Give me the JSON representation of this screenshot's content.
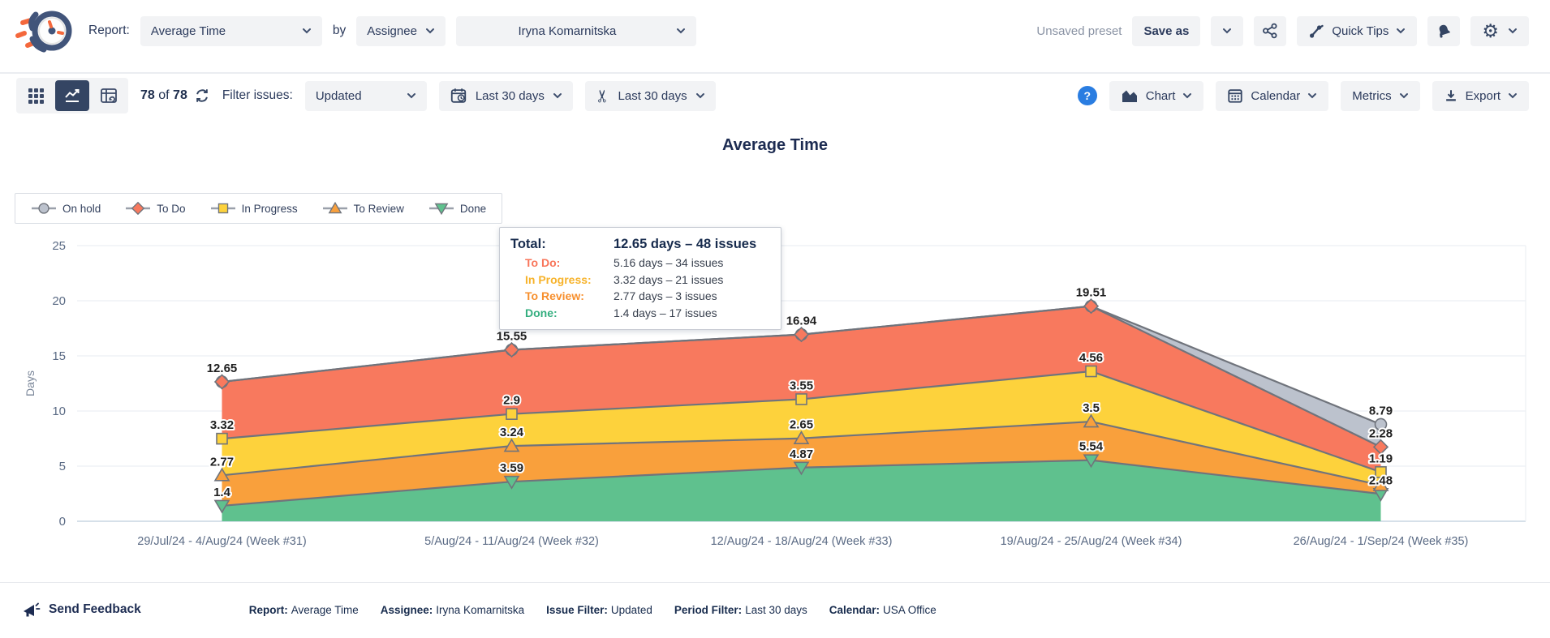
{
  "header": {
    "report_label": "Report:",
    "report_value": "Average Time",
    "by_label": "by",
    "group_value": "Assignee",
    "assignee_value": "Iryna Komarnitska",
    "unsaved_preset": "Unsaved preset",
    "save_as": "Save as",
    "quick_tips": "Quick Tips"
  },
  "icons": {
    "gear": "⚙",
    "scissors": "✂"
  },
  "toolbar": {
    "count_current": "78",
    "count_of": "of",
    "count_total": "78",
    "filter_label": "Filter issues:",
    "issue_filter": "Updated",
    "period_filter": "Last 30 days",
    "working_schedule_filter": "Last 30 days",
    "help": "?",
    "chart_btn": "Chart",
    "calendar_btn": "Calendar",
    "metrics_btn": "Metrics",
    "export_btn": "Export"
  },
  "legend": {
    "items": [
      {
        "label": "On hold",
        "marker": "circle",
        "color": "#bcc2cd"
      },
      {
        "label": "To Do",
        "marker": "diamond",
        "color": "#f8795e"
      },
      {
        "label": "In Progress",
        "marker": "square",
        "color": "#fdd23c"
      },
      {
        "label": "To Review",
        "marker": "triangle-up",
        "color": "#f9a03c"
      },
      {
        "label": "Done",
        "marker": "triangle-down",
        "color": "#5fc18e"
      }
    ]
  },
  "tooltip": {
    "title_label": "Total:",
    "title_value": "12.65 days – 48 issues",
    "rows": [
      {
        "label": "To Do:",
        "value": "5.16 days – 34 issues",
        "color": "#f8755a"
      },
      {
        "label": "In Progress:",
        "value": "3.32 days – 21 issues",
        "color": "#f7b32b"
      },
      {
        "label": "To Review:",
        "value": "2.77 days – 3 issues",
        "color": "#f78f2d"
      },
      {
        "label": "Done:",
        "value": "1.4 days – 17 issues",
        "color": "#34ae7f"
      }
    ]
  },
  "chart_data": {
    "type": "area",
    "stacked": true,
    "title": "Average Time",
    "ylabel": "Days",
    "ylim": [
      0,
      25
    ],
    "yticks": [
      0,
      5,
      10,
      15,
      20,
      25
    ],
    "grid": true,
    "legend_position": "top-left",
    "categories": [
      "29/Jul/24 - 4/Aug/24 (Week #31)",
      "5/Aug/24 - 11/Aug/24 (Week #32)",
      "12/Aug/24 - 18/Aug/24 (Week #33)",
      "19/Aug/24 - 25/Aug/24 (Week #34)",
      "26/Aug/24 - 1/Sep/24 (Week #35)"
    ],
    "series": [
      {
        "name": "Done",
        "color": "#5fc18e",
        "marker": "triangle-down",
        "values": [
          1.4,
          3.59,
          4.87,
          5.54,
          2.48
        ],
        "labels": [
          "1.4",
          "3.59",
          "4.87",
          "5.54",
          "2.48"
        ]
      },
      {
        "name": "To Review",
        "color": "#f9a03c",
        "marker": "triangle-up",
        "values": [
          2.77,
          3.24,
          2.65,
          3.5,
          0.79
        ],
        "labels": [
          "2.77",
          "3.24",
          "2.65",
          "3.5",
          ""
        ]
      },
      {
        "name": "In Progress",
        "color": "#fdd23c",
        "marker": "square",
        "values": [
          3.32,
          2.9,
          3.55,
          4.56,
          1.19
        ],
        "labels": [
          "3.32",
          "2.9",
          "3.55",
          "4.56",
          "1.19"
        ]
      },
      {
        "name": "To Do",
        "color": "#f8795e",
        "marker": "diamond",
        "values": [
          5.16,
          5.82,
          5.87,
          5.91,
          2.28
        ],
        "labels": [
          "12.65",
          "15.55",
          "16.94",
          "19.51",
          "2.28"
        ]
      },
      {
        "name": "On hold",
        "color": "#bcc2cd",
        "marker": "circle",
        "values": [
          0,
          0,
          0,
          0,
          2.05
        ],
        "labels": [
          "",
          "",
          "",
          "",
          "8.79"
        ]
      }
    ],
    "marker_order": [
      4,
      0,
      1,
      2,
      3
    ],
    "line_color": "#70747c"
  },
  "footer": {
    "send_feedback": "Send Feedback",
    "summary": [
      {
        "label": "Report:",
        "value": "Average Time"
      },
      {
        "label": "Assignee:",
        "value": "Iryna Komarnitska"
      },
      {
        "label": "Issue Filter:",
        "value": "Updated"
      },
      {
        "label": "Period Filter:",
        "value": "Last 30 days"
      },
      {
        "label": "Calendar:",
        "value": "USA Office"
      }
    ]
  }
}
